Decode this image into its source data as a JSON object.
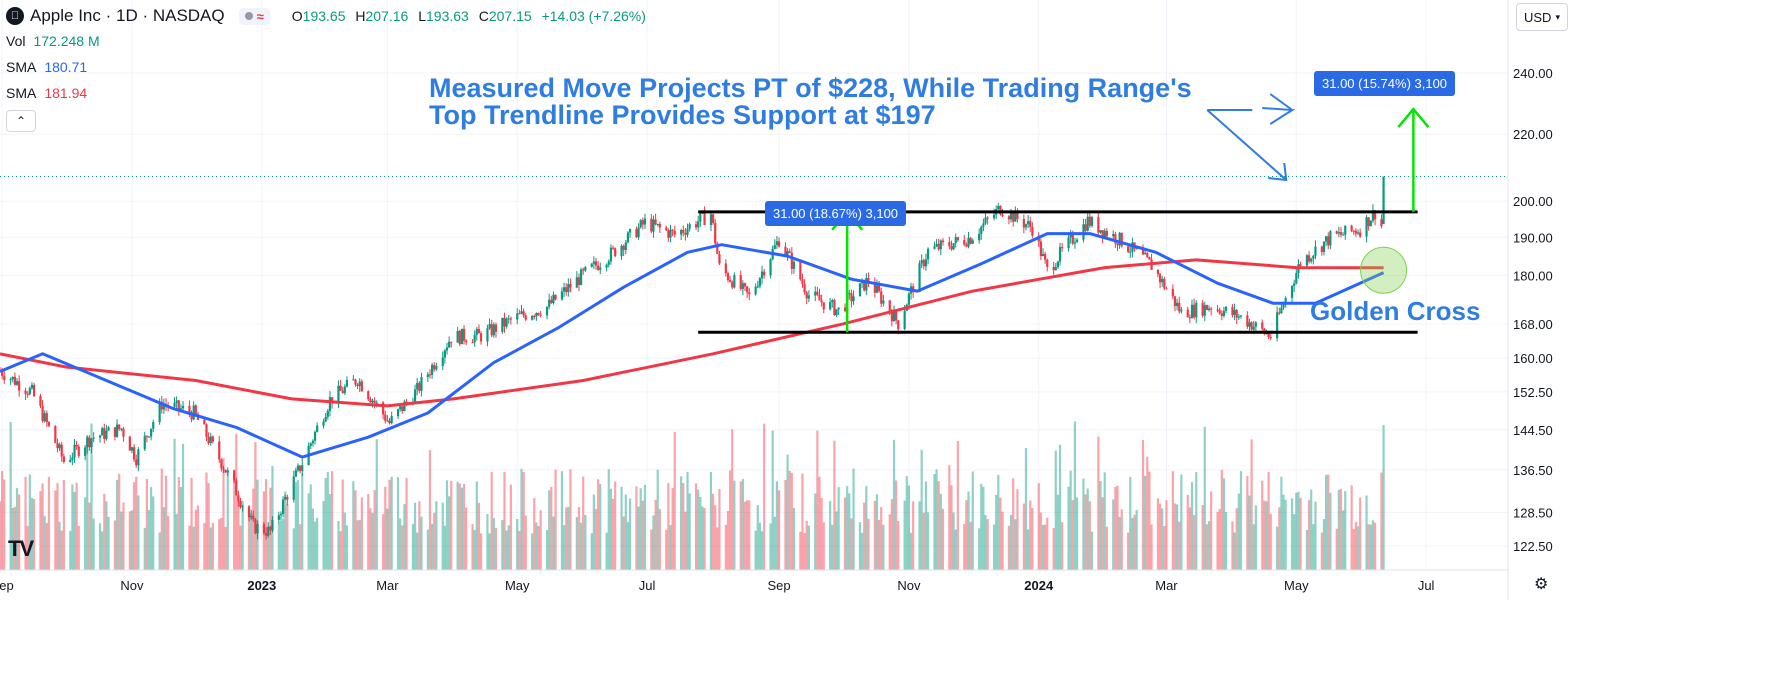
{
  "header": {
    "symbol": "Apple Inc · 1D · NASDAQ",
    "logo_icon": "apple-icon",
    "ohlc": {
      "o_label": "O",
      "o_value": "193.65",
      "h_label": "H",
      "h_value": "207.16",
      "l_label": "L",
      "l_value": "193.63",
      "c_label": "C",
      "c_value": "207.15",
      "change": "+14.03 (+7.26%)"
    }
  },
  "indicators": {
    "vol": {
      "label": "Vol",
      "value": "172.248 M",
      "color": "#089981"
    },
    "sma_fast": {
      "label": "SMA",
      "value": "180.71",
      "color": "#2962ff"
    },
    "sma_slow": {
      "label": "SMA",
      "value": "181.94",
      "color": "#f23645"
    }
  },
  "currency_button": "USD",
  "annotations": {
    "headline_line1": "Measured Move Projects PT of $228, While Trading Range's",
    "headline_line2": "Top Trendline Provides Support at $197",
    "golden_cross": "Golden Cross",
    "measure_badge_1": "31.00 (18.67%) 3,100",
    "measure_badge_2": "31.00 (15.74%) 3,100"
  },
  "colors": {
    "up": "#089981",
    "down": "#f23645",
    "sma_fast": "#2962ff",
    "sma_slow": "#f23645",
    "annotation_blue": "#2f7de1",
    "arrow_green": "#00e600",
    "badge_blue": "#2a6ae4"
  },
  "chart_data": {
    "type": "candlestick",
    "symbol": "AAPL",
    "interval": "1D",
    "y_axis_scale": "log",
    "yticks": [
      122.5,
      128.5,
      136.5,
      144.5,
      152.5,
      160.0,
      168.0,
      180.0,
      190.0,
      200.0,
      220.0,
      240.0
    ],
    "ytick_labels": [
      "122.50",
      "128.50",
      "136.50",
      "144.50",
      "152.50",
      "160.00",
      "168.00",
      "180.00",
      "190.00",
      "200.00",
      "220.00",
      "240.00"
    ],
    "xticks": [
      "Sep",
      "Nov",
      "2023",
      "Mar",
      "May",
      "Jul",
      "Sep",
      "Nov",
      "2024",
      "Mar",
      "May",
      "Jul"
    ],
    "xtick_dates": [
      "2022-09-01",
      "2022-11-01",
      "2023-01-01",
      "2023-03-01",
      "2023-05-01",
      "2023-07-01",
      "2023-09-01",
      "2023-11-01",
      "2024-01-01",
      "2024-03-01",
      "2024-05-01",
      "2024-07-01"
    ],
    "xlim": [
      "2022-08-31",
      "2024-07-31"
    ],
    "grid": true,
    "price_key_points": [
      {
        "date": "2022-08-31",
        "close": 157.2
      },
      {
        "date": "2022-09-15",
        "close": 152.4
      },
      {
        "date": "2022-09-30",
        "close": 138.2
      },
      {
        "date": "2022-10-13",
        "close": 142.9
      },
      {
        "date": "2022-10-27",
        "close": 144.8
      },
      {
        "date": "2022-11-03",
        "close": 138.9
      },
      {
        "date": "2022-11-15",
        "close": 150.0
      },
      {
        "date": "2022-11-30",
        "close": 148.0
      },
      {
        "date": "2022-12-15",
        "close": 136.5
      },
      {
        "date": "2022-12-28",
        "close": 126.0
      },
      {
        "date": "2023-01-05",
        "close": 125.0
      },
      {
        "date": "2023-01-20",
        "close": 137.9
      },
      {
        "date": "2023-02-02",
        "close": 150.8
      },
      {
        "date": "2023-02-15",
        "close": 155.3
      },
      {
        "date": "2023-03-02",
        "close": 145.9
      },
      {
        "date": "2023-03-15",
        "close": 152.9
      },
      {
        "date": "2023-03-31",
        "close": 164.9
      },
      {
        "date": "2023-04-14",
        "close": 165.2
      },
      {
        "date": "2023-05-01",
        "close": 169.6
      },
      {
        "date": "2023-05-15",
        "close": 172.1
      },
      {
        "date": "2023-06-01",
        "close": 180.1
      },
      {
        "date": "2023-06-15",
        "close": 186.0
      },
      {
        "date": "2023-06-30",
        "close": 193.97
      },
      {
        "date": "2023-07-14",
        "close": 190.7
      },
      {
        "date": "2023-07-31",
        "close": 196.45
      },
      {
        "date": "2023-08-04",
        "close": 181.99
      },
      {
        "date": "2023-08-18",
        "close": 174.5
      },
      {
        "date": "2023-09-01",
        "close": 189.46
      },
      {
        "date": "2023-09-15",
        "close": 175.0
      },
      {
        "date": "2023-09-29",
        "close": 171.2
      },
      {
        "date": "2023-10-13",
        "close": 178.8
      },
      {
        "date": "2023-10-27",
        "close": 168.2
      },
      {
        "date": "2023-11-10",
        "close": 186.4
      },
      {
        "date": "2023-11-30",
        "close": 189.9
      },
      {
        "date": "2023-12-14",
        "close": 198.1
      },
      {
        "date": "2023-12-29",
        "close": 192.5
      },
      {
        "date": "2024-01-05",
        "close": 181.2
      },
      {
        "date": "2024-01-24",
        "close": 194.5
      },
      {
        "date": "2024-02-09",
        "close": 188.9
      },
      {
        "date": "2024-02-23",
        "close": 182.5
      },
      {
        "date": "2024-03-08",
        "close": 170.7
      },
      {
        "date": "2024-03-22",
        "close": 172.3
      },
      {
        "date": "2024-04-05",
        "close": 169.6
      },
      {
        "date": "2024-04-19",
        "close": 165.0
      },
      {
        "date": "2024-05-03",
        "close": 183.4
      },
      {
        "date": "2024-05-17",
        "close": 189.9
      },
      {
        "date": "2024-05-31",
        "close": 192.3
      },
      {
        "date": "2024-06-07",
        "close": 196.9
      },
      {
        "date": "2024-06-10",
        "close": 193.1
      },
      {
        "date": "2024-06-11",
        "open": 193.65,
        "high": 207.16,
        "low": 193.63,
        "close": 207.15
      }
    ],
    "sma_fast_key_points": [
      {
        "date": "2022-08-31",
        "value": 157.0
      },
      {
        "date": "2022-09-20",
        "value": 161.0
      },
      {
        "date": "2022-10-20",
        "value": 155.0
      },
      {
        "date": "2022-11-20",
        "value": 149.0
      },
      {
        "date": "2022-12-20",
        "value": 145.0
      },
      {
        "date": "2023-01-20",
        "value": 139.0
      },
      {
        "date": "2023-02-20",
        "value": 143.0
      },
      {
        "date": "2023-03-20",
        "value": 148.0
      },
      {
        "date": "2023-04-20",
        "value": 159.0
      },
      {
        "date": "2023-05-20",
        "value": 167.0
      },
      {
        "date": "2023-06-20",
        "value": 177.0
      },
      {
        "date": "2023-07-20",
        "value": 186.0
      },
      {
        "date": "2023-08-05",
        "value": 188.0
      },
      {
        "date": "2023-09-05",
        "value": 185.0
      },
      {
        "date": "2023-10-05",
        "value": 179.0
      },
      {
        "date": "2023-11-05",
        "value": 176.0
      },
      {
        "date": "2023-12-05",
        "value": 183.0
      },
      {
        "date": "2024-01-05",
        "value": 191.0
      },
      {
        "date": "2024-01-25",
        "value": 191.0
      },
      {
        "date": "2024-02-25",
        "value": 186.0
      },
      {
        "date": "2024-03-25",
        "value": 178.0
      },
      {
        "date": "2024-04-20",
        "value": 173.0
      },
      {
        "date": "2024-05-10",
        "value": 173.0
      },
      {
        "date": "2024-06-11",
        "value": 180.71
      }
    ],
    "sma_slow_key_points": [
      {
        "date": "2022-08-31",
        "value": 161.0
      },
      {
        "date": "2022-10-01",
        "value": 158.0
      },
      {
        "date": "2022-12-01",
        "value": 155.0
      },
      {
        "date": "2023-01-15",
        "value": 151.0
      },
      {
        "date": "2023-03-01",
        "value": 149.5
      },
      {
        "date": "2023-04-01",
        "value": 151.0
      },
      {
        "date": "2023-06-01",
        "value": 155.0
      },
      {
        "date": "2023-08-01",
        "value": 161.0
      },
      {
        "date": "2023-10-01",
        "value": 168.0
      },
      {
        "date": "2023-12-01",
        "value": 176.0
      },
      {
        "date": "2024-02-01",
        "value": 182.0
      },
      {
        "date": "2024-03-15",
        "value": 184.0
      },
      {
        "date": "2024-05-01",
        "value": 182.0
      },
      {
        "date": "2024-06-11",
        "value": 181.94
      }
    ],
    "horizontal_levels": [
      {
        "name": "range-top",
        "value": 197.0,
        "from": "2023-07-25",
        "to": "2024-06-27"
      },
      {
        "name": "range-bottom",
        "value": 166.0,
        "from": "2023-07-25",
        "to": "2024-06-27"
      }
    ],
    "last_close_dotted": 207.15,
    "measured_moves": [
      {
        "from_value": 166.0,
        "to_value": 197.0,
        "date": "2023-10-03",
        "label": "31.00 (18.67%) 3,100"
      },
      {
        "from_value": 197.0,
        "to_value": 228.0,
        "date": "2024-06-25",
        "label": "31.00 (15.74%) 3,100"
      }
    ],
    "volume_max_label": "172.248 M"
  }
}
